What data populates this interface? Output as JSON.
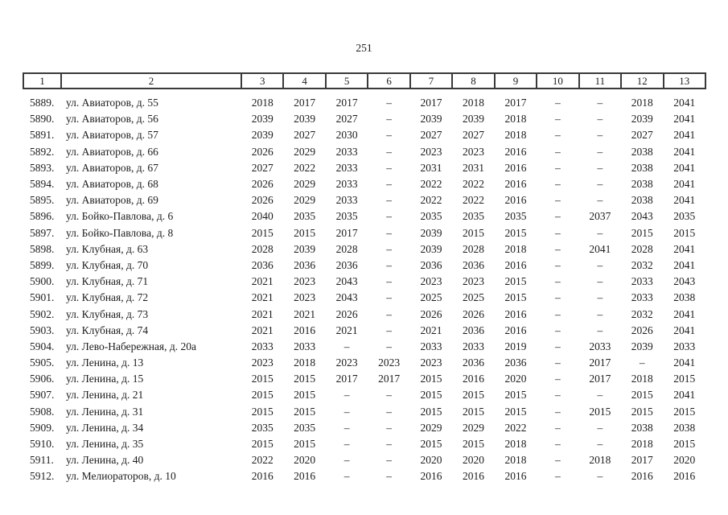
{
  "page": {
    "number": "251"
  },
  "table": {
    "columns": [
      "1",
      "2",
      "3",
      "4",
      "5",
      "6",
      "7",
      "8",
      "9",
      "10",
      "11",
      "12",
      "13"
    ],
    "rows": [
      {
        "num": "5889.",
        "address": "ул. Авиаторов, д. 55",
        "values": [
          "2018",
          "2017",
          "2017",
          "–",
          "2017",
          "2018",
          "2017",
          "–",
          "–",
          "2018",
          "2041"
        ]
      },
      {
        "num": "5890.",
        "address": "ул. Авиаторов, д. 56",
        "values": [
          "2039",
          "2039",
          "2027",
          "–",
          "2039",
          "2039",
          "2018",
          "–",
          "–",
          "2039",
          "2041"
        ]
      },
      {
        "num": "5891.",
        "address": "ул. Авиаторов, д. 57",
        "values": [
          "2039",
          "2027",
          "2030",
          "–",
          "2027",
          "2027",
          "2018",
          "–",
          "–",
          "2027",
          "2041"
        ]
      },
      {
        "num": "5892.",
        "address": "ул. Авиаторов, д. 66",
        "values": [
          "2026",
          "2029",
          "2033",
          "–",
          "2023",
          "2023",
          "2016",
          "–",
          "–",
          "2038",
          "2041"
        ]
      },
      {
        "num": "5893.",
        "address": "ул. Авиаторов, д. 67",
        "values": [
          "2027",
          "2022",
          "2033",
          "–",
          "2031",
          "2031",
          "2016",
          "–",
          "–",
          "2038",
          "2041"
        ]
      },
      {
        "num": "5894.",
        "address": "ул. Авиаторов, д. 68",
        "values": [
          "2026",
          "2029",
          "2033",
          "–",
          "2022",
          "2022",
          "2016",
          "–",
          "–",
          "2038",
          "2041"
        ]
      },
      {
        "num": "5895.",
        "address": "ул. Авиаторов, д. 69",
        "values": [
          "2026",
          "2029",
          "2033",
          "–",
          "2022",
          "2022",
          "2016",
          "–",
          "–",
          "2038",
          "2041"
        ]
      },
      {
        "num": "5896.",
        "address": "ул. Бойко-Павлова, д. 6",
        "values": [
          "2040",
          "2035",
          "2035",
          "–",
          "2035",
          "2035",
          "2035",
          "–",
          "2037",
          "2043",
          "2035"
        ]
      },
      {
        "num": "5897.",
        "address": "ул. Бойко-Павлова, д. 8",
        "values": [
          "2015",
          "2015",
          "2017",
          "–",
          "2039",
          "2015",
          "2015",
          "–",
          "–",
          "2015",
          "2015"
        ]
      },
      {
        "num": "5898.",
        "address": "ул. Клубная, д. 63",
        "values": [
          "2028",
          "2039",
          "2028",
          "–",
          "2039",
          "2028",
          "2018",
          "–",
          "2041",
          "2028",
          "2041"
        ]
      },
      {
        "num": "5899.",
        "address": "ул. Клубная, д. 70",
        "values": [
          "2036",
          "2036",
          "2036",
          "–",
          "2036",
          "2036",
          "2016",
          "–",
          "–",
          "2032",
          "2041"
        ]
      },
      {
        "num": "5900.",
        "address": "ул. Клубная, д. 71",
        "values": [
          "2021",
          "2023",
          "2043",
          "–",
          "2023",
          "2023",
          "2015",
          "–",
          "–",
          "2033",
          "2043"
        ]
      },
      {
        "num": "5901.",
        "address": "ул. Клубная, д. 72",
        "values": [
          "2021",
          "2023",
          "2043",
          "–",
          "2025",
          "2025",
          "2015",
          "–",
          "–",
          "2033",
          "2038"
        ]
      },
      {
        "num": "5902.",
        "address": "ул. Клубная, д. 73",
        "values": [
          "2021",
          "2021",
          "2026",
          "–",
          "2026",
          "2026",
          "2016",
          "–",
          "–",
          "2032",
          "2041"
        ]
      },
      {
        "num": "5903.",
        "address": "ул. Клубная, д. 74",
        "values": [
          "2021",
          "2016",
          "2021",
          "–",
          "2021",
          "2036",
          "2016",
          "–",
          "–",
          "2026",
          "2041"
        ]
      },
      {
        "num": "5904.",
        "address": "ул. Лево-Набережная, д. 20а",
        "values": [
          "2033",
          "2033",
          "–",
          "–",
          "2033",
          "2033",
          "2019",
          "–",
          "2033",
          "2039",
          "2033"
        ]
      },
      {
        "num": "5905.",
        "address": "ул. Ленина, д. 13",
        "values": [
          "2023",
          "2018",
          "2023",
          "2023",
          "2023",
          "2036",
          "2036",
          "–",
          "2017",
          "–",
          "2041"
        ]
      },
      {
        "num": "5906.",
        "address": "ул. Ленина, д. 15",
        "values": [
          "2015",
          "2015",
          "2017",
          "2017",
          "2015",
          "2016",
          "2020",
          "–",
          "2017",
          "2018",
          "2015"
        ]
      },
      {
        "num": "5907.",
        "address": "ул. Ленина, д. 21",
        "values": [
          "2015",
          "2015",
          "–",
          "–",
          "2015",
          "2015",
          "2015",
          "–",
          "–",
          "2015",
          "2041"
        ]
      },
      {
        "num": "5908.",
        "address": "ул. Ленина, д. 31",
        "values": [
          "2015",
          "2015",
          "–",
          "–",
          "2015",
          "2015",
          "2015",
          "–",
          "2015",
          "2015",
          "2015"
        ]
      },
      {
        "num": "5909.",
        "address": "ул. Ленина, д. 34",
        "values": [
          "2035",
          "2035",
          "–",
          "–",
          "2029",
          "2029",
          "2022",
          "–",
          "–",
          "2038",
          "2038"
        ]
      },
      {
        "num": "5910.",
        "address": "ул. Ленина, д. 35",
        "values": [
          "2015",
          "2015",
          "–",
          "–",
          "2015",
          "2015",
          "2018",
          "–",
          "–",
          "2018",
          "2015"
        ]
      },
      {
        "num": "5911.",
        "address": "ул. Ленина, д. 40",
        "values": [
          "2022",
          "2020",
          "–",
          "–",
          "2020",
          "2020",
          "2018",
          "–",
          "2018",
          "2017",
          "2020"
        ]
      },
      {
        "num": "5912.",
        "address": "ул. Мелиораторов, д. 10",
        "values": [
          "2016",
          "2016",
          "–",
          "–",
          "2016",
          "2016",
          "2016",
          "–",
          "–",
          "2016",
          "2016"
        ]
      }
    ]
  }
}
